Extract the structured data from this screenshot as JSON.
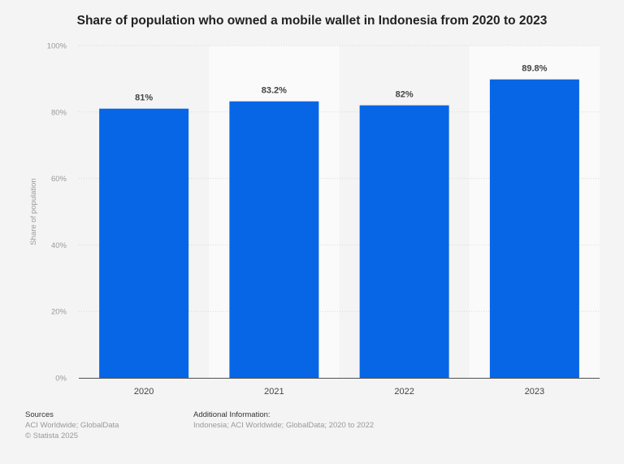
{
  "chart_data": {
    "type": "bar",
    "title": "Share of population who owned a mobile wallet in Indonesia from 2020 to 2023",
    "categories": [
      "2020",
      "2021",
      "2022",
      "2023"
    ],
    "values": [
      81,
      83.2,
      82,
      89.8
    ],
    "data_labels": [
      "81%",
      "83.2%",
      "82%",
      "89.8%"
    ],
    "xlabel": "",
    "ylabel": "Share of population",
    "ylim": [
      0,
      100
    ],
    "yticks": [
      0,
      20,
      40,
      60,
      80,
      100
    ],
    "ytick_labels": [
      "0%",
      "20%",
      "40%",
      "60%",
      "80%",
      "100%"
    ],
    "grid": true,
    "bar_color": "#0666e5"
  },
  "footer": {
    "sources_heading": "Sources",
    "sources_text": "ACI Worldwide; GlobalData",
    "copyright": "© Statista 2025",
    "additional_heading": "Additional Information:",
    "additional_text": "Indonesia; ACI Worldwide; GlobalData; 2020 to 2022"
  }
}
